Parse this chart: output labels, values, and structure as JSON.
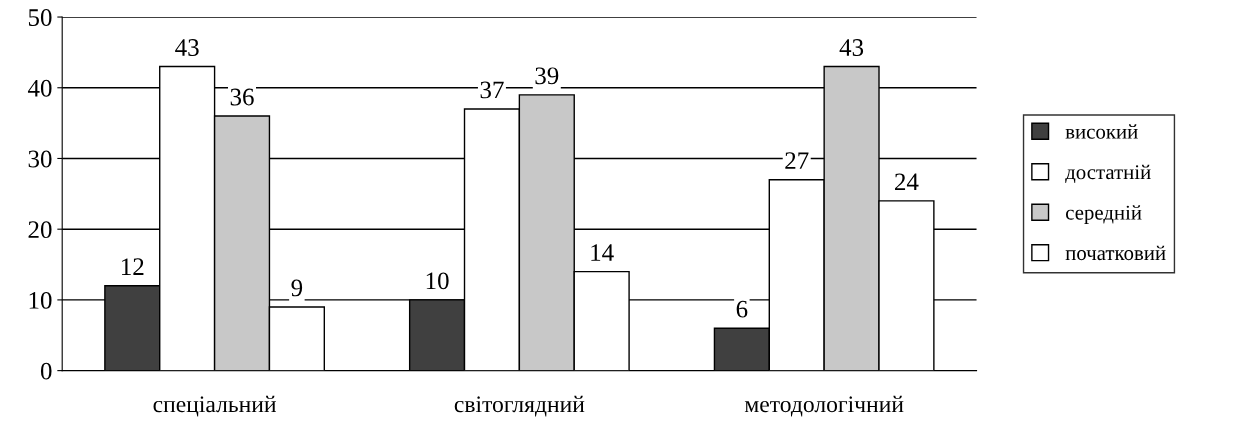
{
  "chart_data": {
    "type": "bar",
    "categories": [
      "спеціальний",
      "світоглядний",
      "методологічний"
    ],
    "series": [
      {
        "name": "високий",
        "color": "#404040",
        "values": [
          12,
          10,
          6
        ]
      },
      {
        "name": "достатній",
        "color": "#ffffff",
        "values": [
          43,
          37,
          27
        ]
      },
      {
        "name": "середній",
        "color": "#c8c8c8",
        "values": [
          36,
          39,
          43
        ]
      },
      {
        "name": "початковий",
        "color": "#ffffff",
        "values": [
          9,
          14,
          24
        ]
      }
    ],
    "ylim": [
      0,
      50
    ],
    "yticks": [
      0,
      10,
      20,
      30,
      40,
      50
    ],
    "grid": "y",
    "legend": "right",
    "data_labels": true
  }
}
